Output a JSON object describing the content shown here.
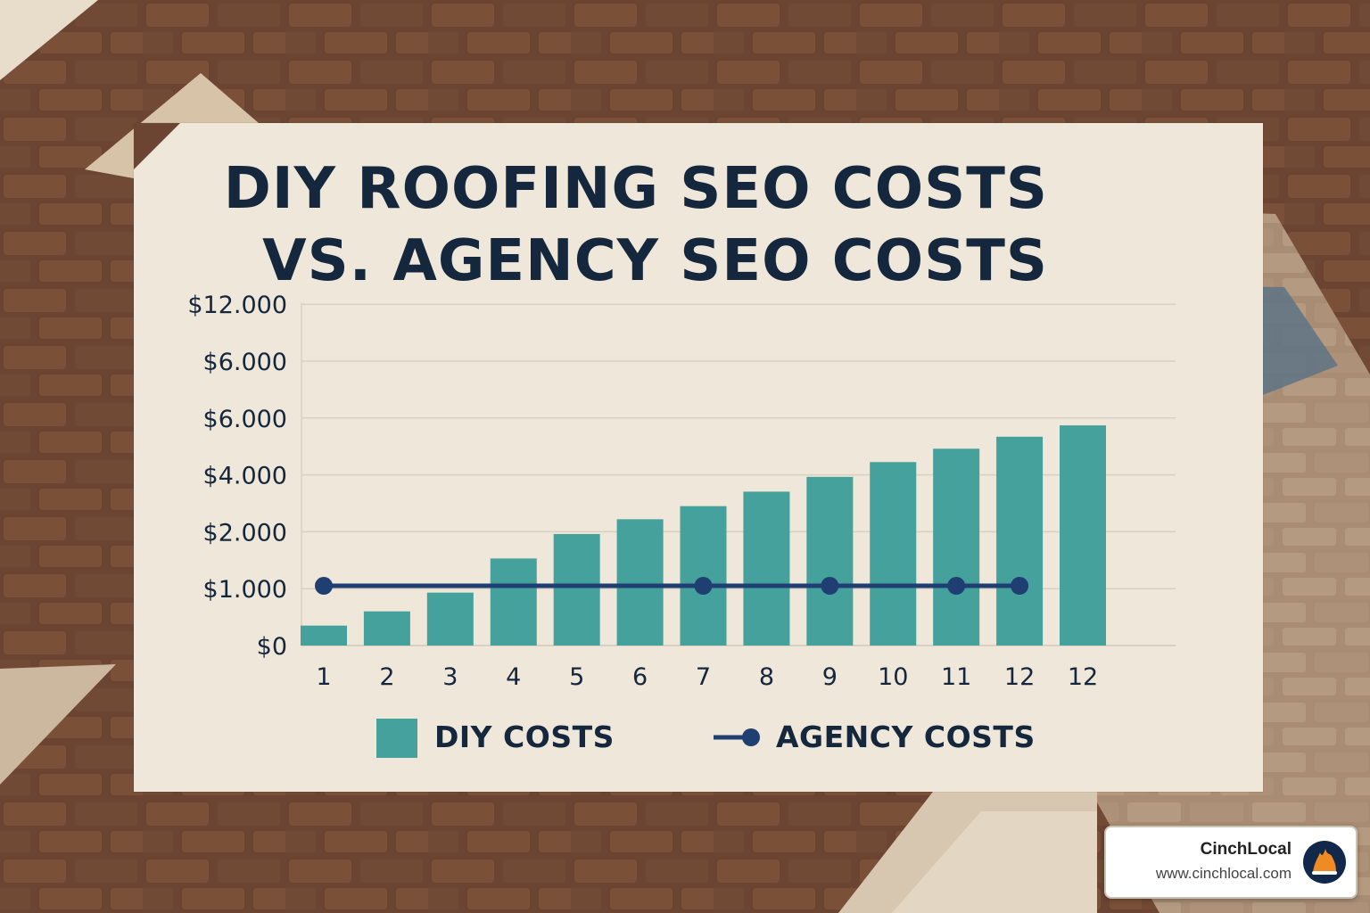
{
  "chart_data": {
    "type": "bar",
    "title": "DIY ROOFING SEO COSTS",
    "subtitle": "VS. AGENCY SEO COSTS",
    "categories": [
      "1",
      "2",
      "3",
      "4",
      "5",
      "6",
      "7",
      "8",
      "9",
      "10",
      "11",
      "12",
      "12"
    ],
    "y_tick_labels": [
      "$12.000",
      "$6.000",
      "$6.000",
      "$4.000",
      "$2.000",
      "$1.000",
      "$0"
    ],
    "series": [
      {
        "name": "DIY COSTS",
        "type": "bar",
        "color": "#45a19c",
        "values": [
          350,
          600,
          930,
          1530,
          1960,
          2440,
          2900,
          3410,
          3930,
          4450,
          4920,
          5340,
          5740
        ]
      },
      {
        "name": "AGENCY COSTS",
        "type": "line",
        "color": "#1f3f73",
        "values": [
          1050,
          1050,
          1050,
          1050,
          1050,
          1050,
          1050,
          1050,
          1050,
          1050,
          1050,
          1050,
          1050
        ],
        "marker_categories": [
          1,
          7,
          9,
          11,
          12
        ]
      }
    ],
    "xlabel": "",
    "ylabel": "",
    "grid": true,
    "legend_position": "bottom"
  },
  "legend": {
    "diy_label": "DIY COSTS",
    "agency_label": "AGENCY COSTS"
  },
  "brand": {
    "name": "CinchLocal",
    "url": "www.cinchlocal.com"
  }
}
